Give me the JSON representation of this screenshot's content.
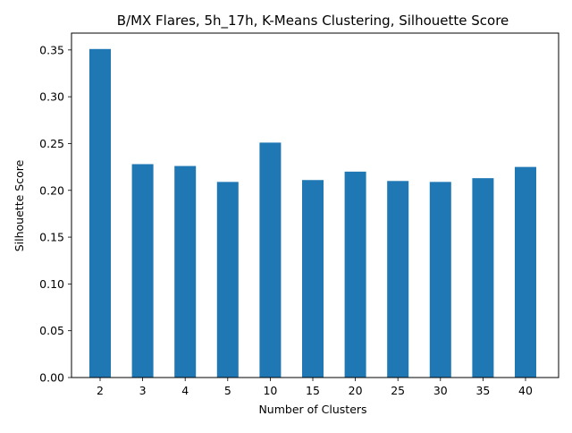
{
  "chart_data": {
    "type": "bar",
    "title": "B/MX Flares, 5h_17h, K-Means Clustering, Silhouette Score",
    "xlabel": "Number of Clusters",
    "ylabel": "Silhouette Score",
    "categories": [
      "2",
      "3",
      "4",
      "5",
      "10",
      "15",
      "20",
      "25",
      "30",
      "35",
      "40"
    ],
    "values": [
      0.351,
      0.228,
      0.226,
      0.209,
      0.251,
      0.211,
      0.22,
      0.21,
      0.209,
      0.213,
      0.225
    ],
    "ylim": [
      0,
      0.368
    ],
    "yticks": [
      "0.00",
      "0.05",
      "0.10",
      "0.15",
      "0.20",
      "0.25",
      "0.30",
      "0.35"
    ],
    "bar_color": "#1f77b4",
    "grid": false,
    "legend": "none"
  }
}
